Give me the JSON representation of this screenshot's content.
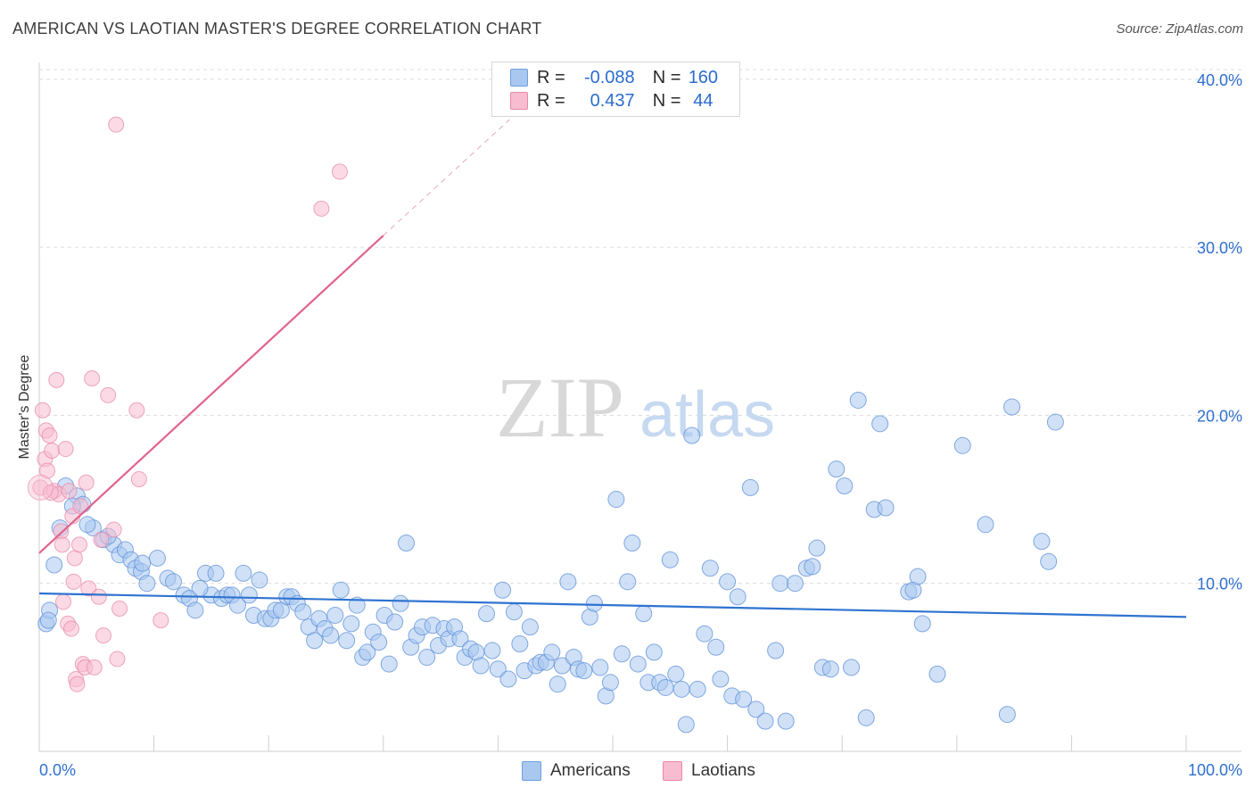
{
  "title": "AMERICAN VS LAOTIAN MASTER'S DEGREE CORRELATION CHART",
  "source": "Source: ZipAtlas.com",
  "watermark": {
    "zip": "ZIP",
    "atlas": "atlas"
  },
  "legend": {
    "r_label": "R =",
    "n_label": "N =",
    "rows": [
      {
        "r": "-0.088",
        "n": "160",
        "color": "#a9c8f0",
        "border": "#6d9fe0"
      },
      {
        "r": "0.437",
        "n": "44",
        "color": "#f7bcd0",
        "border": "#ea89a8"
      }
    ]
  },
  "colors": {
    "americans_fill": "#a9c8f0",
    "americans_stroke": "#5c8fd8",
    "americans_line": "#2f73d0",
    "laotians_fill": "#f7bcd0",
    "laotians_stroke": "#e889a8",
    "laotians_line": "#e0638e",
    "axis_label": "#2f6fd0",
    "grid": "#dcdcdc"
  },
  "chart_data": {
    "type": "scatter",
    "title": "AMERICAN VS LAOTIAN MASTER'S DEGREE CORRELATION CHART",
    "xlabel": "",
    "ylabel": "Master's Degree",
    "xlim": [
      0,
      100
    ],
    "ylim": [
      0,
      41
    ],
    "x_tick_labels": [
      "0.0%",
      "100.0%"
    ],
    "y_ticks": [
      10,
      20,
      30,
      40
    ],
    "y_tick_labels": [
      "10.0%",
      "20.0%",
      "30.0%",
      "40.0%"
    ],
    "grid": true,
    "legend_position": "top-center",
    "series": [
      {
        "name": "Americans",
        "r": -0.088,
        "n": 160,
        "trend": {
          "x": [
            0,
            100
          ],
          "y": [
            9.4,
            8.0
          ]
        },
        "points": [
          [
            0.6,
            7.6
          ],
          [
            0.9,
            8.4
          ],
          [
            1.3,
            11.1
          ],
          [
            1.8,
            13.3
          ],
          [
            2.3,
            15.8
          ],
          [
            3.3,
            15.2
          ],
          [
            3.8,
            14.7
          ],
          [
            4.7,
            13.3
          ],
          [
            5.6,
            12.6
          ],
          [
            6.5,
            12.3
          ],
          [
            7.0,
            11.7
          ],
          [
            7.5,
            12.0
          ],
          [
            8.0,
            11.4
          ],
          [
            8.4,
            10.9
          ],
          [
            8.9,
            10.7
          ],
          [
            9.4,
            10.0
          ],
          [
            10.3,
            11.5
          ],
          [
            11.2,
            10.3
          ],
          [
            11.7,
            10.1
          ],
          [
            12.6,
            9.3
          ],
          [
            13.1,
            9.1
          ],
          [
            13.6,
            8.4
          ],
          [
            14.5,
            10.6
          ],
          [
            15.0,
            9.3
          ],
          [
            15.4,
            10.6
          ],
          [
            15.9,
            9.1
          ],
          [
            16.4,
            9.3
          ],
          [
            16.8,
            9.3
          ],
          [
            17.3,
            8.7
          ],
          [
            17.8,
            10.6
          ],
          [
            18.3,
            9.3
          ],
          [
            18.7,
            8.1
          ],
          [
            19.2,
            10.2
          ],
          [
            19.7,
            7.9
          ],
          [
            20.2,
            7.9
          ],
          [
            20.6,
            8.4
          ],
          [
            21.1,
            8.4
          ],
          [
            21.6,
            9.2
          ],
          [
            22.0,
            9.2
          ],
          [
            22.5,
            8.8
          ],
          [
            23.0,
            8.3
          ],
          [
            23.5,
            7.4
          ],
          [
            24.0,
            6.6
          ],
          [
            24.4,
            7.9
          ],
          [
            24.9,
            7.3
          ],
          [
            25.4,
            6.9
          ],
          [
            25.8,
            8.1
          ],
          [
            26.3,
            9.6
          ],
          [
            26.8,
            6.6
          ],
          [
            27.2,
            7.6
          ],
          [
            27.7,
            8.7
          ],
          [
            28.2,
            5.6
          ],
          [
            28.6,
            5.9
          ],
          [
            29.1,
            7.1
          ],
          [
            29.6,
            6.5
          ],
          [
            30.1,
            8.1
          ],
          [
            30.5,
            5.2
          ],
          [
            31.0,
            7.7
          ],
          [
            31.5,
            8.8
          ],
          [
            32.0,
            12.4
          ],
          [
            32.4,
            6.2
          ],
          [
            32.9,
            6.9
          ],
          [
            33.4,
            7.4
          ],
          [
            33.8,
            5.6
          ],
          [
            34.3,
            7.5
          ],
          [
            34.8,
            6.3
          ],
          [
            35.3,
            7.3
          ],
          [
            35.7,
            6.7
          ],
          [
            36.2,
            7.4
          ],
          [
            36.7,
            6.7
          ],
          [
            37.1,
            5.6
          ],
          [
            37.6,
            6.1
          ],
          [
            38.1,
            5.9
          ],
          [
            38.5,
            5.1
          ],
          [
            39.0,
            8.2
          ],
          [
            39.5,
            6.0
          ],
          [
            40.0,
            4.9
          ],
          [
            40.4,
            9.6
          ],
          [
            40.9,
            4.3
          ],
          [
            41.4,
            8.3
          ],
          [
            41.9,
            6.4
          ],
          [
            42.3,
            4.8
          ],
          [
            42.8,
            7.4
          ],
          [
            43.3,
            5.1
          ],
          [
            43.7,
            5.3
          ],
          [
            44.2,
            5.3
          ],
          [
            44.7,
            5.9
          ],
          [
            45.2,
            4.0
          ],
          [
            45.6,
            5.1
          ],
          [
            46.1,
            10.1
          ],
          [
            46.6,
            5.6
          ],
          [
            47.0,
            4.9
          ],
          [
            47.5,
            4.8
          ],
          [
            48.0,
            8.0
          ],
          [
            48.4,
            8.8
          ],
          [
            48.9,
            5.0
          ],
          [
            49.4,
            3.3
          ],
          [
            49.8,
            4.1
          ],
          [
            50.3,
            15.0
          ],
          [
            50.8,
            5.8
          ],
          [
            51.3,
            10.1
          ],
          [
            51.7,
            12.4
          ],
          [
            52.2,
            5.2
          ],
          [
            52.7,
            8.2
          ],
          [
            53.1,
            4.1
          ],
          [
            53.6,
            5.9
          ],
          [
            54.1,
            4.1
          ],
          [
            54.6,
            3.8
          ],
          [
            55.0,
            11.4
          ],
          [
            55.5,
            4.6
          ],
          [
            56.0,
            3.7
          ],
          [
            56.4,
            1.6
          ],
          [
            56.9,
            18.8
          ],
          [
            57.4,
            3.7
          ],
          [
            58.0,
            7.0
          ],
          [
            58.5,
            10.9
          ],
          [
            59.0,
            6.2
          ],
          [
            59.4,
            4.3
          ],
          [
            60.0,
            10.1
          ],
          [
            60.4,
            3.3
          ],
          [
            60.9,
            9.2
          ],
          [
            61.4,
            3.1
          ],
          [
            62.0,
            15.7
          ],
          [
            62.5,
            2.5
          ],
          [
            63.3,
            1.8
          ],
          [
            64.2,
            6.0
          ],
          [
            64.6,
            10.0
          ],
          [
            65.1,
            1.8
          ],
          [
            65.9,
            10.0
          ],
          [
            66.9,
            10.9
          ],
          [
            67.4,
            11.0
          ],
          [
            67.8,
            12.1
          ],
          [
            68.3,
            5.0
          ],
          [
            69.0,
            4.9
          ],
          [
            69.5,
            16.8
          ],
          [
            70.2,
            15.8
          ],
          [
            70.8,
            5.0
          ],
          [
            71.4,
            20.9
          ],
          [
            72.1,
            2.0
          ],
          [
            72.8,
            14.4
          ],
          [
            73.3,
            19.5
          ],
          [
            73.8,
            14.5
          ],
          [
            75.8,
            9.5
          ],
          [
            76.2,
            9.6
          ],
          [
            76.6,
            10.4
          ],
          [
            77.0,
            7.6
          ],
          [
            78.3,
            4.6
          ],
          [
            80.5,
            18.2
          ],
          [
            82.5,
            13.5
          ],
          [
            84.4,
            2.2
          ],
          [
            84.8,
            20.5
          ],
          [
            87.4,
            12.5
          ],
          [
            88.0,
            11.3
          ],
          [
            88.6,
            19.6
          ],
          [
            0.8,
            7.8
          ],
          [
            2.9,
            14.6
          ],
          [
            4.2,
            13.5
          ],
          [
            6.0,
            12.8
          ],
          [
            9.0,
            11.2
          ],
          [
            14.0,
            9.7
          ]
        ]
      },
      {
        "name": "Laotians",
        "r": 0.437,
        "n": 44,
        "trend": {
          "x": [
            0,
            30
          ],
          "y": [
            11.8,
            30.7
          ]
        },
        "trend_extension": {
          "x": [
            30,
            41
          ],
          "y": [
            30.7,
            37.6
          ]
        },
        "points": [
          [
            0.1,
            15.7
          ],
          [
            0.3,
            20.3
          ],
          [
            0.5,
            17.4
          ],
          [
            0.6,
            19.1
          ],
          [
            0.7,
            16.7
          ],
          [
            0.9,
            18.8
          ],
          [
            1.1,
            17.9
          ],
          [
            1.3,
            15.5
          ],
          [
            1.5,
            22.1
          ],
          [
            1.7,
            15.3
          ],
          [
            1.9,
            13.1
          ],
          [
            2.0,
            12.3
          ],
          [
            2.1,
            8.9
          ],
          [
            2.3,
            18.0
          ],
          [
            2.5,
            7.6
          ],
          [
            2.6,
            15.5
          ],
          [
            2.8,
            7.3
          ],
          [
            2.9,
            14.0
          ],
          [
            3.0,
            10.1
          ],
          [
            3.1,
            11.5
          ],
          [
            3.2,
            4.3
          ],
          [
            3.3,
            4.0
          ],
          [
            3.5,
            12.3
          ],
          [
            3.6,
            14.6
          ],
          [
            3.8,
            5.2
          ],
          [
            4.0,
            5.0
          ],
          [
            4.1,
            16.0
          ],
          [
            4.3,
            9.7
          ],
          [
            4.6,
            22.2
          ],
          [
            4.8,
            5.0
          ],
          [
            5.2,
            9.2
          ],
          [
            5.4,
            12.6
          ],
          [
            5.6,
            6.9
          ],
          [
            6.0,
            21.2
          ],
          [
            6.5,
            13.2
          ],
          [
            6.7,
            37.3
          ],
          [
            6.8,
            5.5
          ],
          [
            7.0,
            8.5
          ],
          [
            8.5,
            20.3
          ],
          [
            8.7,
            16.2
          ],
          [
            10.6,
            7.8
          ],
          [
            24.6,
            32.3
          ],
          [
            26.2,
            34.5
          ],
          [
            1.0,
            15.4
          ]
        ]
      }
    ]
  },
  "bottom_legend": [
    {
      "label": "Americans"
    },
    {
      "label": "Laotians"
    }
  ]
}
